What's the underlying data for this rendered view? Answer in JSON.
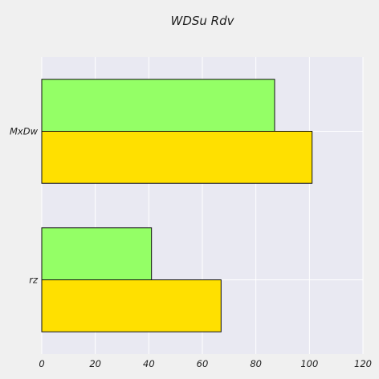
{
  "chart_data": {
    "type": "bar",
    "orientation": "horizontal",
    "title": "WDSu Rdv",
    "xlabel": "",
    "ylabel": "",
    "categories": [
      "rz",
      "MxDw"
    ],
    "series": [
      {
        "color": "#ffe000",
        "values": [
          67,
          101
        ]
      },
      {
        "color": "#94ff66",
        "values": [
          41,
          87
        ]
      }
    ],
    "xlim": [
      0,
      120
    ],
    "xticks": [
      0,
      20,
      40,
      60,
      80,
      100,
      120
    ],
    "grid": true,
    "legend": "none",
    "colors": {
      "plot_background": "#e9e9f2",
      "page_background": "#f0f0f0",
      "grid": "#ffffff",
      "bar_edge": "#111111"
    }
  }
}
